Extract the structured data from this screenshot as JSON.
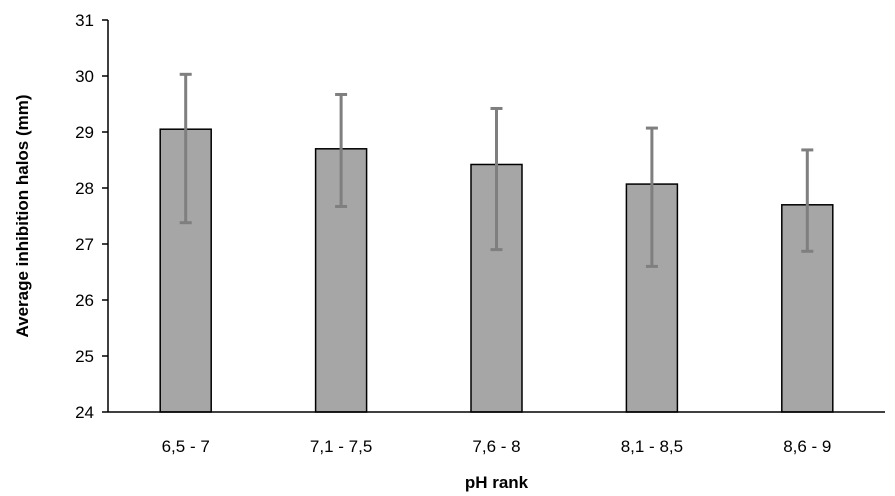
{
  "chart_data": {
    "type": "bar",
    "title": "",
    "xlabel": "pH rank",
    "ylabel": "Average inhibition halos (mm)",
    "categories": [
      "6,5 - 7",
      "7,1 - 7,5",
      "7,6 - 8",
      "8,1 - 8,5",
      "8,6 - 9"
    ],
    "values": [
      29.05,
      28.7,
      28.42,
      28.07,
      27.7
    ],
    "error_low": [
      27.38,
      27.67,
      26.9,
      26.6,
      26.87
    ],
    "error_high": [
      30.03,
      29.67,
      29.42,
      29.07,
      28.68
    ],
    "ylim": [
      24,
      31
    ],
    "yticks": [
      24,
      25,
      26,
      27,
      28,
      29,
      30,
      31
    ],
    "grid": false,
    "legend": "none",
    "colors": {
      "bar_fill": "#a6a6a6",
      "bar_stroke": "#000000",
      "error_bar": "#7f7f7f",
      "axis": "#000000"
    }
  }
}
